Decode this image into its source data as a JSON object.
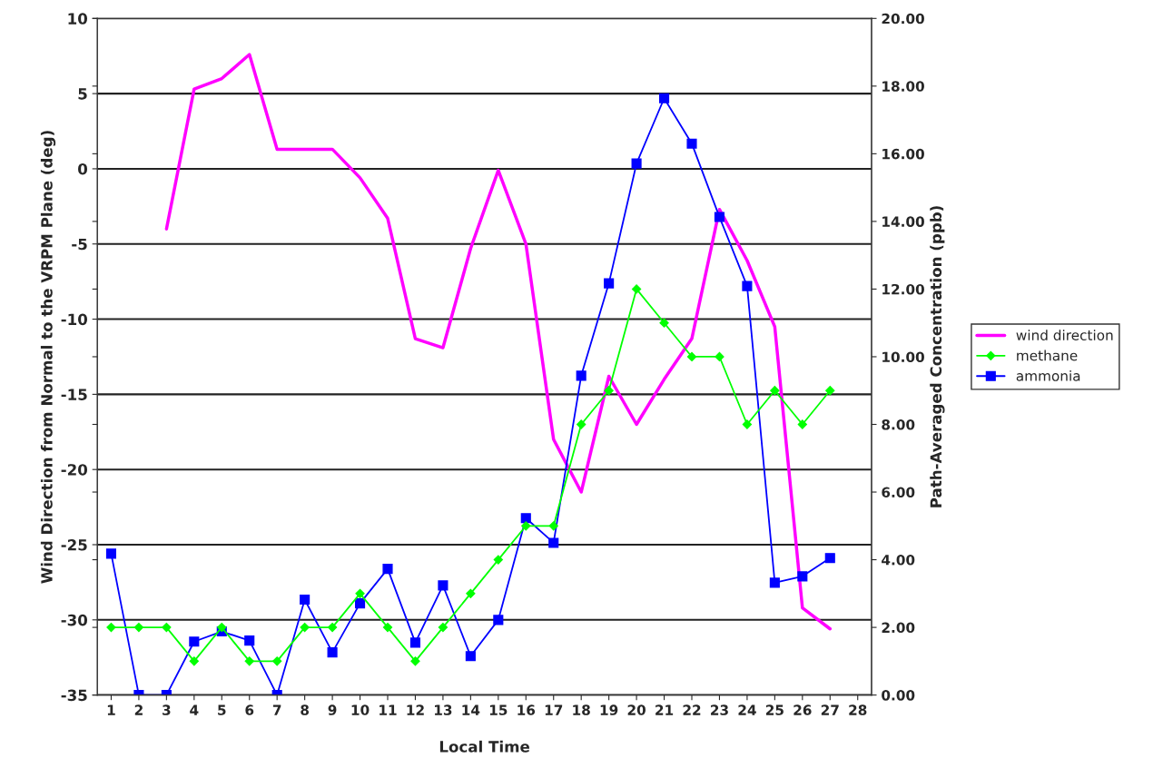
{
  "chart_data": {
    "type": "line",
    "xlabel": "Local Time",
    "ylabel": "Wind Direction from Normal to the VRPM Plane (deg)",
    "y2label": "Path-Averaged Concentration (ppb)",
    "categories": [
      "1",
      "2",
      "3",
      "4",
      "5",
      "6",
      "7",
      "8",
      "9",
      "10",
      "11",
      "12",
      "13",
      "14",
      "15",
      "16",
      "17",
      "18",
      "19",
      "20",
      "21",
      "22",
      "23",
      "24",
      "25",
      "26",
      "27",
      "28"
    ],
    "series": [
      {
        "name": "wind direction",
        "color": "#ff00ff",
        "marker": "none",
        "values": [
          null,
          null,
          -4.0,
          5.3,
          6.0,
          7.6,
          1.3,
          1.3,
          1.3,
          -0.6,
          -3.3,
          -11.3,
          -11.9,
          -5.3,
          -0.1,
          -5.0,
          -18.0,
          -21.5,
          -13.8,
          -17.0,
          -14.0,
          -11.3,
          -2.7,
          -6.1,
          -10.5,
          -29.2,
          -30.6,
          null
        ]
      },
      {
        "name": "methane",
        "color": "#00ff00",
        "marker": "diamond",
        "axis": "y2",
        "values": [
          2,
          2,
          2,
          1,
          2,
          1,
          1,
          2,
          2,
          3,
          2,
          1,
          2,
          3,
          4,
          5,
          5,
          8,
          9,
          12,
          11,
          10,
          10,
          8,
          9,
          8,
          9,
          null
        ]
      },
      {
        "name": "ammonia",
        "color": "#0000ff",
        "marker": "square",
        "axis": "y2",
        "values": [
          4.18,
          0,
          0,
          1.58,
          1.88,
          1.61,
          0,
          2.82,
          1.26,
          2.71,
          3.73,
          1.55,
          3.24,
          1.15,
          2.22,
          5.23,
          4.5,
          9.44,
          12.17,
          15.71,
          17.64,
          16.3,
          14.13,
          12.09,
          3.32,
          3.51,
          4.05,
          null
        ]
      }
    ],
    "ylim": [
      -35,
      10
    ],
    "yticks": [
      -35,
      -30,
      -25,
      -20,
      -15,
      -10,
      -5,
      0,
      5,
      10
    ],
    "y2lim": [
      0,
      20
    ],
    "y2ticks": [
      {
        "value": 0,
        "label": "0.00"
      },
      {
        "value": 2,
        "label": "2.00"
      },
      {
        "value": 4,
        "label": "4.00"
      },
      {
        "value": 6,
        "label": "6.00"
      },
      {
        "value": 8,
        "label": "8.00"
      },
      {
        "value": 10,
        "label": "10.00"
      },
      {
        "value": 12,
        "label": "12.00"
      },
      {
        "value": 14,
        "label": "14.00"
      },
      {
        "value": 16,
        "label": "16.00"
      },
      {
        "value": 18,
        "label": "18.00"
      },
      {
        "value": 20,
        "label": "20.00"
      }
    ],
    "grid": "y",
    "legend": "right"
  }
}
